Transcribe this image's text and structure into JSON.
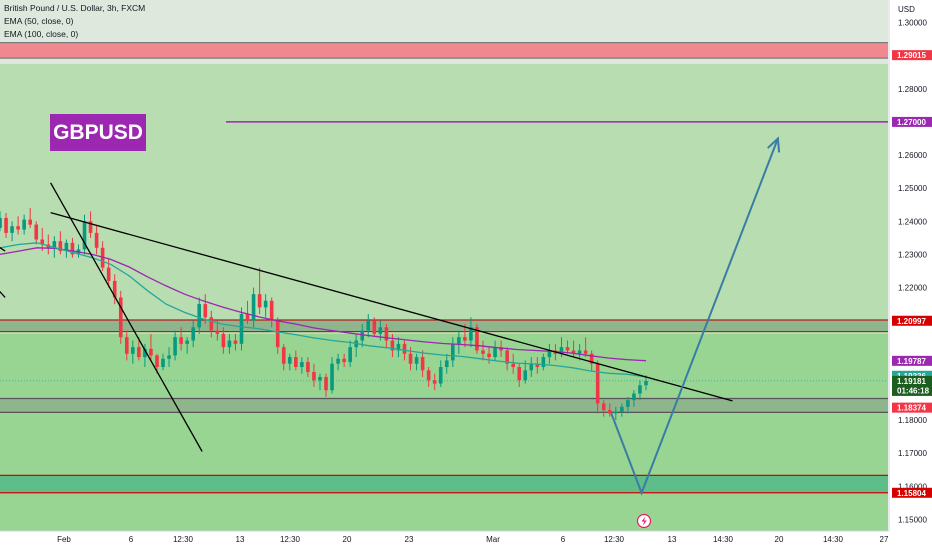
{
  "legend": {
    "symbol": "British Pound / U.S. Dollar, 3h, FXCM",
    "ema50": "EMA (50, close, 0)",
    "ema100": "EMA (100, close, 0)"
  },
  "ticker_badge": "GBPUSD",
  "currency_label": "USD",
  "bolt_icon": "lightning-bolt-icon",
  "colors": {
    "up_candle": "#089981",
    "down_candle": "#f23645",
    "ema50": "#26a69a",
    "ema100": "#9c27b0",
    "trendline": "#000000",
    "arrow": "#3a7ca5",
    "level_line_red": "#d50000",
    "ticker_badge": "#9c27b0"
  },
  "chart_data": {
    "type": "candlestick",
    "ylim": [
      1.1465,
      1.3068
    ],
    "y_ticks": [
      "1.30000",
      "1.29015",
      "1.28000",
      "1.27000",
      "1.26000",
      "1.25000",
      "1.24000",
      "1.23000",
      "1.22000",
      "1.20997",
      "1.19787",
      "1.19336",
      "1.19181",
      "1.18374",
      "1.18000",
      "1.17000",
      "1.16000",
      "1.15804",
      "1.15000"
    ],
    "x_ticks": [
      "Feb",
      "6",
      "12:30",
      "13",
      "12:30",
      "20",
      "23",
      "Mar",
      "6",
      "12:30",
      "13",
      "14:30",
      "20",
      "14:30",
      "27"
    ],
    "background_zones": [
      {
        "from": 1.2875,
        "to": 1.3068,
        "color": "#dfe8dc"
      },
      {
        "from": 1.206,
        "to": 1.2875,
        "color": "#b8ddb0"
      },
      {
        "from": 1.1465,
        "to": 1.206,
        "color": "#98d592"
      }
    ],
    "zones": [
      {
        "from": 1.28925,
        "to": 1.29395,
        "color": "#f08890",
        "border": "#7a7a7a"
      },
      {
        "from": 1.2067,
        "to": 1.2102,
        "color": "#8fb58c",
        "border": "#b71c1c"
      },
      {
        "from": 1.1823,
        "to": 1.1865,
        "color": "#8fb58c",
        "border": "#555555"
      },
      {
        "from": 1.15804,
        "to": 1.1633,
        "color": "#5fbd8a",
        "border": "#d50000"
      }
    ],
    "levels": [
      {
        "value": "1.29015",
        "price": 1.29015,
        "tag_color": "#f23645"
      },
      {
        "value": "1.27000",
        "price": 1.27,
        "tag_color": "#9c27b0",
        "line": true
      },
      {
        "value": "1.20997",
        "price": 1.20997,
        "tag_color": "#d50000"
      },
      {
        "value": "1.19787",
        "price": 1.19787,
        "tag_color": "#9c27b0"
      },
      {
        "value": "1.19336",
        "price": 1.19336,
        "tag_color": "#26a69a"
      },
      {
        "value": "1.18374",
        "price": 1.18374,
        "tag_color": "#f23645"
      },
      {
        "value": "1.15804",
        "price": 1.15804,
        "tag_color": "#d50000"
      }
    ],
    "last_price": {
      "value": "1.19181",
      "price": 1.19181,
      "countdown": "01:46:18"
    },
    "candles": [
      [
        1.238,
        1.243,
        1.237,
        1.241
      ],
      [
        1.241,
        1.2425,
        1.235,
        1.2365
      ],
      [
        1.2365,
        1.24,
        1.234,
        1.2385
      ],
      [
        1.2385,
        1.2415,
        1.236,
        1.2375
      ],
      [
        1.2375,
        1.242,
        1.236,
        1.2405
      ],
      [
        1.2405,
        1.244,
        1.238,
        1.239
      ],
      [
        1.239,
        1.24,
        1.233,
        1.2345
      ],
      [
        1.2345,
        1.238,
        1.231,
        1.233
      ],
      [
        1.233,
        1.236,
        1.23,
        1.232
      ],
      [
        1.232,
        1.2355,
        1.229,
        1.234
      ],
      [
        1.234,
        1.237,
        1.23,
        1.231
      ],
      [
        1.231,
        1.2345,
        1.229,
        1.2335
      ],
      [
        1.2335,
        1.235,
        1.229,
        1.23
      ],
      [
        1.23,
        1.233,
        1.229,
        1.2315
      ],
      [
        1.2315,
        1.242,
        1.23,
        1.24
      ],
      [
        1.24,
        1.243,
        1.235,
        1.2365
      ],
      [
        1.2365,
        1.239,
        1.23,
        1.232
      ],
      [
        1.232,
        1.234,
        1.225,
        1.226
      ],
      [
        1.226,
        1.229,
        1.22,
        1.222
      ],
      [
        1.222,
        1.224,
        1.215,
        1.217
      ],
      [
        1.217,
        1.219,
        1.203,
        1.205
      ],
      [
        1.205,
        1.207,
        1.198,
        1.2
      ],
      [
        1.2,
        1.204,
        1.197,
        1.202
      ],
      [
        1.202,
        1.205,
        1.198,
        1.199
      ],
      [
        1.199,
        1.203,
        1.196,
        1.2015
      ],
      [
        1.2015,
        1.206,
        1.198,
        1.1995
      ],
      [
        1.1995,
        1.2,
        1.194,
        1.196
      ],
      [
        1.196,
        1.2,
        1.195,
        1.1985
      ],
      [
        1.1985,
        1.202,
        1.196,
        1.1995
      ],
      [
        1.1995,
        1.207,
        1.198,
        1.205
      ],
      [
        1.205,
        1.208,
        1.201,
        1.203
      ],
      [
        1.203,
        1.205,
        1.2,
        1.204
      ],
      [
        1.204,
        1.21,
        1.202,
        1.208
      ],
      [
        1.208,
        1.217,
        1.206,
        1.215
      ],
      [
        1.215,
        1.218,
        1.209,
        1.211
      ],
      [
        1.211,
        1.213,
        1.205,
        1.207
      ],
      [
        1.207,
        1.21,
        1.204,
        1.206
      ],
      [
        1.206,
        1.208,
        1.2,
        1.202
      ],
      [
        1.202,
        1.206,
        1.2,
        1.204
      ],
      [
        1.204,
        1.206,
        1.201,
        1.203
      ],
      [
        1.203,
        1.214,
        1.201,
        1.212
      ],
      [
        1.212,
        1.216,
        1.209,
        1.21
      ],
      [
        1.21,
        1.22,
        1.208,
        1.218
      ],
      [
        1.218,
        1.226,
        1.212,
        1.214
      ],
      [
        1.214,
        1.218,
        1.211,
        1.216
      ],
      [
        1.216,
        1.217,
        1.208,
        1.21
      ],
      [
        1.21,
        1.211,
        1.2,
        1.202
      ],
      [
        1.202,
        1.203,
        1.195,
        1.197
      ],
      [
        1.197,
        1.2,
        1.195,
        1.199
      ],
      [
        1.199,
        1.201,
        1.195,
        1.196
      ],
      [
        1.196,
        1.199,
        1.194,
        1.1975
      ],
      [
        1.1975,
        1.199,
        1.193,
        1.1945
      ],
      [
        1.1945,
        1.197,
        1.19,
        1.192
      ],
      [
        1.192,
        1.194,
        1.189,
        1.193
      ],
      [
        1.193,
        1.194,
        1.187,
        1.189
      ],
      [
        1.189,
        1.199,
        1.188,
        1.197
      ],
      [
        1.197,
        1.2,
        1.195,
        1.1985
      ],
      [
        1.1985,
        1.2,
        1.196,
        1.1975
      ],
      [
        1.1975,
        1.204,
        1.196,
        1.202
      ],
      [
        1.202,
        1.206,
        1.199,
        1.204
      ],
      [
        1.204,
        1.209,
        1.202,
        1.207
      ],
      [
        1.207,
        1.212,
        1.205,
        1.21
      ],
      [
        1.21,
        1.211,
        1.205,
        1.206
      ],
      [
        1.206,
        1.21,
        1.204,
        1.208
      ],
      [
        1.208,
        1.209,
        1.202,
        1.204
      ],
      [
        1.204,
        1.206,
        1.199,
        1.201
      ],
      [
        1.201,
        1.205,
        1.199,
        1.203
      ],
      [
        1.203,
        1.204,
        1.198,
        1.2
      ],
      [
        1.2,
        1.202,
        1.195,
        1.197
      ],
      [
        1.197,
        1.2,
        1.195,
        1.199
      ],
      [
        1.199,
        1.201,
        1.193,
        1.195
      ],
      [
        1.195,
        1.196,
        1.19,
        1.192
      ],
      [
        1.192,
        1.194,
        1.189,
        1.191
      ],
      [
        1.191,
        1.198,
        1.19,
        1.196
      ],
      [
        1.196,
        1.2,
        1.194,
        1.198
      ],
      [
        1.198,
        1.205,
        1.196,
        1.203
      ],
      [
        1.203,
        1.207,
        1.2,
        1.205
      ],
      [
        1.205,
        1.209,
        1.202,
        1.204
      ],
      [
        1.204,
        1.211,
        1.202,
        1.208
      ],
      [
        1.208,
        1.209,
        1.2,
        1.201
      ],
      [
        1.201,
        1.204,
        1.198,
        1.2
      ],
      [
        1.2,
        1.202,
        1.197,
        1.199
      ],
      [
        1.199,
        1.204,
        1.198,
        1.202
      ],
      [
        1.202,
        1.204,
        1.199,
        1.201
      ],
      [
        1.201,
        1.202,
        1.195,
        1.197
      ],
      [
        1.197,
        1.2,
        1.194,
        1.196
      ],
      [
        1.196,
        1.197,
        1.19,
        1.192
      ],
      [
        1.192,
        1.198,
        1.191,
        1.195
      ],
      [
        1.195,
        1.199,
        1.193,
        1.197
      ],
      [
        1.197,
        1.199,
        1.194,
        1.196
      ],
      [
        1.196,
        1.2,
        1.195,
        1.199
      ],
      [
        1.199,
        1.203,
        1.197,
        1.201
      ],
      [
        1.201,
        1.203,
        1.198,
        1.2
      ],
      [
        1.2,
        1.205,
        1.199,
        1.202
      ],
      [
        1.202,
        1.204,
        1.2,
        1.201
      ],
      [
        1.201,
        1.204,
        1.199,
        1.2
      ],
      [
        1.2,
        1.203,
        1.198,
        1.201
      ],
      [
        1.201,
        1.205,
        1.199,
        1.2
      ],
      [
        1.2,
        1.201,
        1.195,
        1.197
      ],
      [
        1.197,
        1.198,
        1.182,
        1.185
      ],
      [
        1.185,
        1.186,
        1.181,
        1.183
      ],
      [
        1.183,
        1.185,
        1.181,
        1.182
      ],
      [
        1.182,
        1.184,
        1.18,
        1.1825
      ],
      [
        1.1825,
        1.185,
        1.181,
        1.184
      ],
      [
        1.184,
        1.187,
        1.182,
        1.186
      ],
      [
        1.186,
        1.189,
        1.184,
        1.188
      ],
      [
        1.188,
        1.192,
        1.186,
        1.1905
      ],
      [
        1.1905,
        1.1935,
        1.189,
        1.1918
      ]
    ],
    "ema50": [
      1.232,
      1.233,
      1.2335,
      1.232,
      1.2305,
      1.229,
      1.227,
      1.2235,
      1.219,
      1.215,
      1.2125,
      1.2105,
      1.209,
      1.2082,
      1.2076,
      1.2066,
      1.2058,
      1.2048,
      1.204,
      1.2034,
      1.2024,
      1.2018,
      1.201,
      1.2002,
      1.1996,
      1.1992,
      1.1985,
      1.1978,
      1.1972,
      1.1969,
      1.1965,
      1.1958,
      1.1948,
      1.1941,
      1.1938,
      1.193
    ],
    "ema100": [
      1.23,
      1.231,
      1.232,
      1.2318,
      1.231,
      1.23,
      1.2285,
      1.2262,
      1.2232,
      1.2205,
      1.218,
      1.216,
      1.2142,
      1.2126,
      1.2112,
      1.21,
      1.209,
      1.2078,
      1.207,
      1.2062,
      1.2055,
      1.2048,
      1.2042,
      1.2036,
      1.2031,
      1.2028,
      1.2024,
      1.2018,
      1.2013,
      1.201,
      1.2007,
      1.2002,
      1.1994,
      1.1987,
      1.1982,
      1.1979
    ],
    "trendlines": [
      {
        "x1": "2023-01-31",
        "y1": 1.2426,
        "x2": "2023-03-17",
        "y2": 1.1858
      },
      {
        "x1": "2023-01-31",
        "y1": 1.2516,
        "x2": "2023-02-10",
        "y2": 1.1705
      },
      {
        "x1": "2023-01-27",
        "y1": 1.234,
        "x2": "2023-01-28",
        "y2": 1.231
      },
      {
        "x1": "2023-01-27",
        "y1": 1.222,
        "x2": "2023-01-28",
        "y2": 1.217
      }
    ],
    "projection_path": [
      {
        "x": "2023-03-09",
        "y": 1.182
      },
      {
        "x": "2023-03-11",
        "y": 1.158
      },
      {
        "x": "2023-03-20",
        "y": 1.265
      }
    ]
  }
}
